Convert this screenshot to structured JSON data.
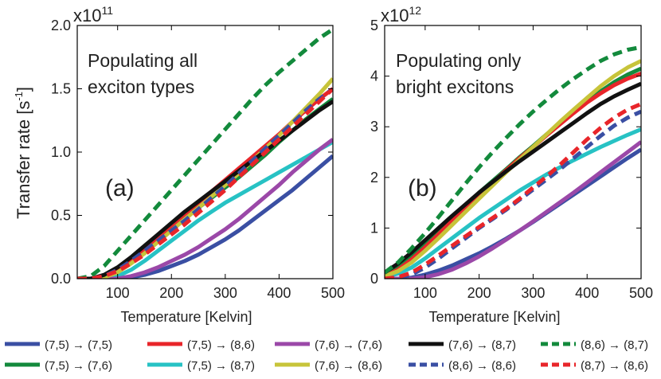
{
  "chart_data": [
    {
      "type": "line",
      "panel_label": "(a)",
      "annotation": [
        "Populating all",
        "exciton types"
      ],
      "exponent_label": "x10",
      "exponent_sup": "11",
      "xlabel": "Temperature [Kelvin]",
      "ylabel": "Transfer rate [s",
      "ylabel_sup": "-1",
      "ylabel_end": "]",
      "xlim": [
        25,
        500
      ],
      "ylim": [
        0,
        2.0
      ],
      "xticks": [
        100,
        200,
        300,
        400,
        500
      ],
      "yticks": [
        0.0,
        0.5,
        1.0,
        1.5,
        2.0
      ],
      "ytick_labels": [
        "0.0",
        "0.5",
        "1.0",
        "1.5",
        "2.0"
      ],
      "x": [
        25,
        50,
        75,
        100,
        125,
        150,
        175,
        200,
        225,
        250,
        275,
        300,
        325,
        350,
        375,
        400,
        425,
        450,
        475,
        500
      ],
      "series": [
        {
          "name": "(7,5) → (7,5)",
          "values": [
            0,
            0,
            0,
            0,
            0.01,
            0.03,
            0.06,
            0.1,
            0.14,
            0.19,
            0.25,
            0.31,
            0.38,
            0.46,
            0.54,
            0.62,
            0.7,
            0.79,
            0.88,
            0.97
          ]
        },
        {
          "name": "(7,5) → (7,6)",
          "values": [
            0,
            0,
            0.02,
            0.07,
            0.14,
            0.22,
            0.31,
            0.4,
            0.48,
            0.56,
            0.64,
            0.72,
            0.8,
            0.89,
            0.98,
            1.08,
            1.17,
            1.26,
            1.34,
            1.42
          ]
        },
        {
          "name": "(7,5) → (8,6)",
          "values": [
            0,
            0,
            0.02,
            0.07,
            0.15,
            0.24,
            0.33,
            0.42,
            0.51,
            0.6,
            0.69,
            0.78,
            0.87,
            0.96,
            1.05,
            1.14,
            1.24,
            1.33,
            1.42,
            1.5
          ]
        },
        {
          "name": "(7,5) → (8,7)",
          "values": [
            0,
            0,
            0,
            0.02,
            0.07,
            0.14,
            0.22,
            0.3,
            0.38,
            0.46,
            0.53,
            0.6,
            0.66,
            0.72,
            0.78,
            0.84,
            0.9,
            0.96,
            1.02,
            1.08
          ]
        },
        {
          "name": "(7,6) → (7,6)",
          "values": [
            0,
            0,
            0,
            0,
            0.02,
            0.05,
            0.09,
            0.14,
            0.19,
            0.25,
            0.32,
            0.39,
            0.47,
            0.56,
            0.65,
            0.74,
            0.84,
            0.93,
            1.02,
            1.1
          ]
        },
        {
          "name": "(7,6) → (8,6)",
          "values": [
            0,
            0,
            0.01,
            0.05,
            0.12,
            0.2,
            0.29,
            0.38,
            0.47,
            0.56,
            0.65,
            0.74,
            0.83,
            0.93,
            1.03,
            1.13,
            1.24,
            1.35,
            1.46,
            1.58
          ]
        },
        {
          "name": "(7,6) → (8,7)",
          "values": [
            0,
            0,
            0.03,
            0.09,
            0.17,
            0.26,
            0.35,
            0.44,
            0.53,
            0.61,
            0.69,
            0.77,
            0.85,
            0.93,
            1.01,
            1.09,
            1.17,
            1.25,
            1.33,
            1.4
          ]
        },
        {
          "name": "(8,6) → (8,6)",
          "values": [
            0,
            0,
            0.02,
            0.07,
            0.14,
            0.22,
            0.3,
            0.38,
            0.46,
            0.55,
            0.64,
            0.73,
            0.83,
            0.93,
            1.03,
            1.13,
            1.23,
            1.33,
            1.42,
            1.5
          ]
        },
        {
          "name": "(8,6) → (8,7)",
          "values": [
            0,
            0.02,
            0.1,
            0.22,
            0.34,
            0.46,
            0.58,
            0.7,
            0.82,
            0.94,
            1.06,
            1.18,
            1.3,
            1.42,
            1.53,
            1.63,
            1.72,
            1.81,
            1.9,
            1.97
          ]
        },
        {
          "name": "(8,7) → (8,6)",
          "values": [
            0,
            0,
            0.02,
            0.06,
            0.12,
            0.19,
            0.27,
            0.35,
            0.43,
            0.52,
            0.61,
            0.7,
            0.8,
            0.9,
            1.0,
            1.1,
            1.2,
            1.3,
            1.4,
            1.5
          ]
        }
      ]
    },
    {
      "type": "line",
      "panel_label": "(b)",
      "annotation": [
        "Populating only",
        "bright excitons"
      ],
      "exponent_label": "x10",
      "exponent_sup": "12",
      "xlabel": "Temperature [Kelvin]",
      "xlim": [
        25,
        500
      ],
      "ylim": [
        0,
        5
      ],
      "xticks": [
        100,
        200,
        300,
        400,
        500
      ],
      "yticks": [
        0,
        1,
        2,
        3,
        4,
        5
      ],
      "ytick_labels": [
        "0",
        "1",
        "2",
        "3",
        "4",
        "5"
      ],
      "x": [
        25,
        50,
        75,
        100,
        125,
        150,
        175,
        200,
        225,
        250,
        275,
        300,
        325,
        350,
        375,
        400,
        425,
        450,
        475,
        500
      ],
      "series": [
        {
          "name": "(7,5) → (7,5)",
          "values": [
            0,
            0,
            0.02,
            0.08,
            0.16,
            0.26,
            0.38,
            0.5,
            0.64,
            0.79,
            0.95,
            1.12,
            1.3,
            1.48,
            1.66,
            1.84,
            2.02,
            2.2,
            2.38,
            2.55
          ]
        },
        {
          "name": "(7,5) → (7,6)",
          "values": [
            0.1,
            0.25,
            0.45,
            0.7,
            0.95,
            1.2,
            1.45,
            1.7,
            1.93,
            2.16,
            2.4,
            2.62,
            2.85,
            3.07,
            3.29,
            3.5,
            3.7,
            3.88,
            4.03,
            4.15
          ]
        },
        {
          "name": "(7,5) → (8,6)",
          "values": [
            0.05,
            0.18,
            0.38,
            0.62,
            0.88,
            1.14,
            1.4,
            1.66,
            1.9,
            2.14,
            2.38,
            2.6,
            2.83,
            3.05,
            3.27,
            3.48,
            3.66,
            3.82,
            3.95,
            4.05
          ]
        },
        {
          "name": "(7,5) → (8,7)",
          "values": [
            0.03,
            0.1,
            0.22,
            0.4,
            0.6,
            0.8,
            1.0,
            1.2,
            1.38,
            1.56,
            1.74,
            1.9,
            2.06,
            2.2,
            2.34,
            2.47,
            2.6,
            2.72,
            2.84,
            2.95
          ]
        },
        {
          "name": "(7,6) → (7,6)",
          "values": [
            0,
            0,
            0,
            0.03,
            0.09,
            0.18,
            0.3,
            0.44,
            0.6,
            0.77,
            0.95,
            1.13,
            1.32,
            1.51,
            1.7,
            1.9,
            2.1,
            2.3,
            2.5,
            2.7
          ]
        },
        {
          "name": "(7,6) → (8,6)",
          "values": [
            0.05,
            0.15,
            0.32,
            0.55,
            0.8,
            1.06,
            1.32,
            1.58,
            1.84,
            2.1,
            2.35,
            2.6,
            2.85,
            3.1,
            3.34,
            3.57,
            3.8,
            4.0,
            4.17,
            4.3
          ]
        },
        {
          "name": "(7,6) → (8,7)",
          "values": [
            0.12,
            0.3,
            0.52,
            0.76,
            1.0,
            1.24,
            1.47,
            1.7,
            1.91,
            2.12,
            2.32,
            2.51,
            2.7,
            2.89,
            3.08,
            3.27,
            3.45,
            3.6,
            3.73,
            3.85
          ]
        },
        {
          "name": "(8,6) → (8,6)",
          "values": [
            0,
            0,
            0.08,
            0.22,
            0.4,
            0.6,
            0.8,
            1.0,
            1.18,
            1.36,
            1.56,
            1.76,
            1.96,
            2.16,
            2.38,
            2.6,
            2.82,
            3.02,
            3.18,
            3.3
          ]
        },
        {
          "name": "(8,6) → (8,7)",
          "values": [
            0.12,
            0.32,
            0.6,
            0.9,
            1.22,
            1.55,
            1.88,
            2.2,
            2.5,
            2.78,
            3.05,
            3.3,
            3.53,
            3.75,
            3.95,
            4.13,
            4.3,
            4.43,
            4.52,
            4.57
          ]
        },
        {
          "name": "(8,7) → (8,6)",
          "values": [
            0,
            0.03,
            0.12,
            0.28,
            0.46,
            0.65,
            0.84,
            1.02,
            1.2,
            1.38,
            1.58,
            1.8,
            2.02,
            2.25,
            2.5,
            2.75,
            2.98,
            3.18,
            3.34,
            3.45
          ]
        }
      ]
    }
  ],
  "legend": [
    {
      "label": "(7,5) → (7,5)",
      "color": "#3a4fa3",
      "dashed": false
    },
    {
      "label": "(7,5) → (8,6)",
      "color": "#e8252a",
      "dashed": false
    },
    {
      "label": "(7,6) → (7,6)",
      "color": "#9b48a8",
      "dashed": false
    },
    {
      "label": "(7,6) → (8,7)",
      "color": "#111111",
      "dashed": false
    },
    {
      "label": "(8,6) → (8,7)",
      "color": "#138a3c",
      "dashed": true
    },
    {
      "label": "(7,5) → (7,6)",
      "color": "#138a3c",
      "dashed": false
    },
    {
      "label": "(7,5) → (8,7)",
      "color": "#27c2c4",
      "dashed": false
    },
    {
      "label": "(7,6) → (8,6)",
      "color": "#c7c43a",
      "dashed": false
    },
    {
      "label": "(8,6) → (8,6)",
      "color": "#3a4fa3",
      "dashed": true
    },
    {
      "label": "(8,7) → (8,6)",
      "color": "#e8252a",
      "dashed": true
    }
  ],
  "series_styles": {
    "(7,5) → (7,5)": {
      "color": "#3a4fa3",
      "dashed": false
    },
    "(7,5) → (7,6)": {
      "color": "#138a3c",
      "dashed": false
    },
    "(7,5) → (8,6)": {
      "color": "#e8252a",
      "dashed": false
    },
    "(7,5) → (8,7)": {
      "color": "#27c2c4",
      "dashed": false
    },
    "(7,6) → (7,6)": {
      "color": "#9b48a8",
      "dashed": false
    },
    "(7,6) → (8,6)": {
      "color": "#c7c43a",
      "dashed": false
    },
    "(7,6) → (8,7)": {
      "color": "#111111",
      "dashed": false
    },
    "(8,6) → (8,6)": {
      "color": "#3a4fa3",
      "dashed": true
    },
    "(8,6) → (8,7)": {
      "color": "#138a3c",
      "dashed": true
    },
    "(8,7) → (8,6)": {
      "color": "#e8252a",
      "dashed": true
    }
  }
}
